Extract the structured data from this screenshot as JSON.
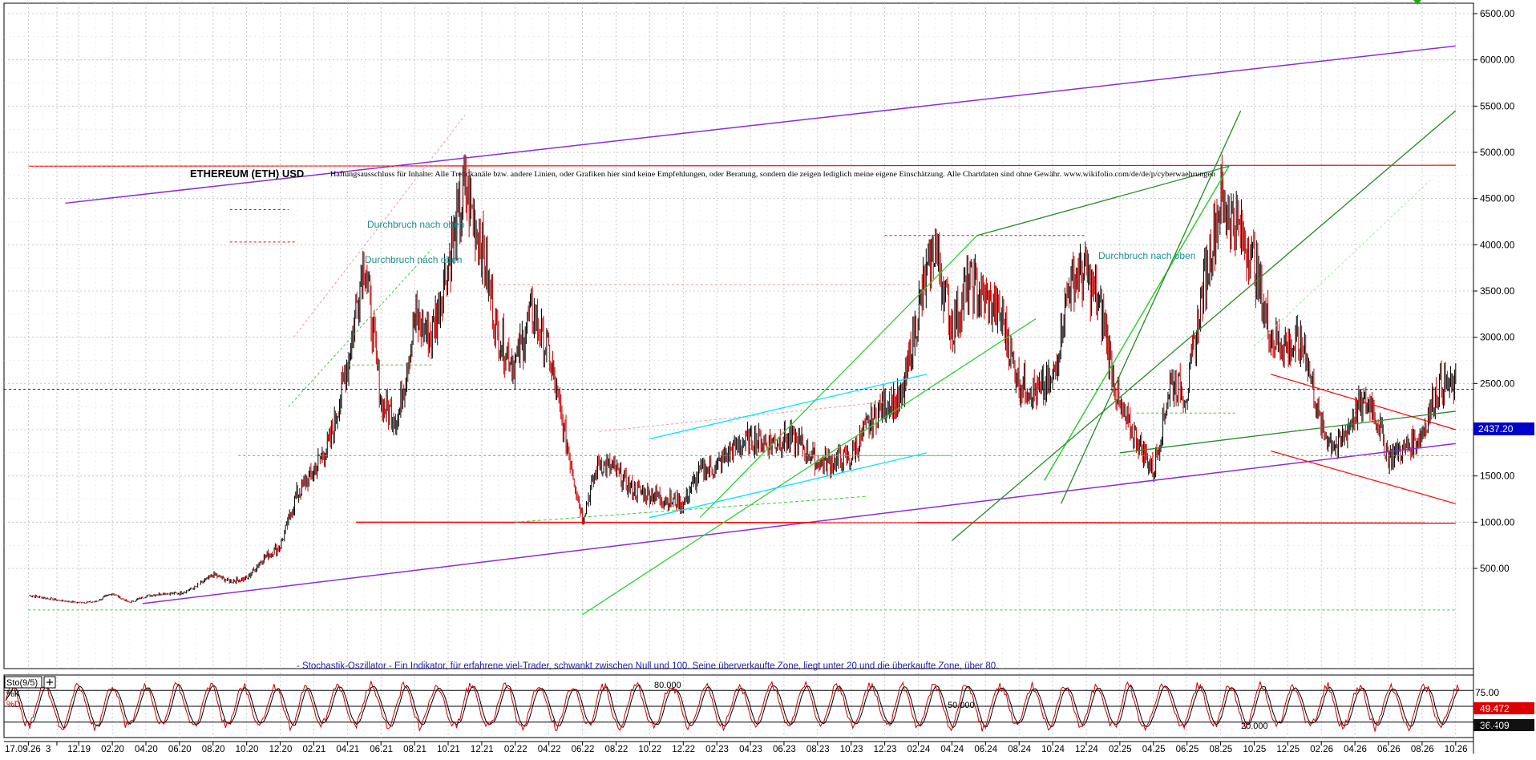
{
  "header": {
    "title": "ETHEREUM (ETH) USD",
    "disclaimer": "Haftungsausschluss für Inhalte: Alle Trendkanäle bzw. andere Linien, oder Grafiken hier sind keine Empfehlungen, oder Beratung, sondern die zeigen lediglich meine eigene Einschätzung. Alle Chartdaten sind ohne Gewähr. www.wikifolio.com/de/de/p/cyberwaehrungen"
  },
  "annotations": [
    {
      "text": "Durchbruch nach oben",
      "x": "2021-03",
      "y": 4550
    },
    {
      "text": "Durchbruch nach oben",
      "x": "2021-03",
      "y": 4180
    },
    {
      "text": "Durchbruch nach oben",
      "x": "2024-11",
      "y": 4130
    }
  ],
  "indicator": {
    "label": "Sto(9/5)",
    "k_label": "%K",
    "d_label": "%D",
    "description": "- Stochastik-Oszillator - Ein Indikator, für erfahrene viel-Trader, schwankt zwischen Null und 100. Seine überverkaufte Zone, liegt unter 20 und die überkaufte Zone, über 80.",
    "levels": [
      80,
      50,
      20
    ],
    "level_labels": [
      "80.000",
      "50.000",
      "20.000"
    ],
    "k_value": "49.472",
    "d_value": "36.409",
    "yticks": [
      "75.00",
      "25.00"
    ],
    "k_color": "#cc0000",
    "d_color": "#000000"
  },
  "colors": {
    "price_up": "#000000",
    "price_down": "#cc0000",
    "channel_purple": "#8a2be2",
    "trend_green": "#33cc33",
    "dark_green": "#228b22",
    "cyan": "#00e5ff",
    "red_line": "#ff0000",
    "current_price_blue": "#0000cc",
    "grid": "#bbbbbb"
  },
  "chart_data": {
    "type": "line",
    "title": "ETHEREUM (ETH) USD",
    "xlabel": "",
    "ylabel": "",
    "scale": "linear",
    "grid": true,
    "ylim": [
      0,
      6650
    ],
    "yticks": [
      500,
      1000,
      1500,
      2000,
      2500,
      3000,
      3500,
      4000,
      4500,
      5000,
      5500,
      6000,
      6500
    ],
    "ytick_labels": [
      "500.00",
      "1000.00",
      "1500.00",
      "2000.00",
      "2500.00",
      "3000.00",
      "3500.00",
      "4000.00",
      "4500.00",
      "5000.00",
      "5500.00",
      "6000.00",
      "6500.00"
    ],
    "current_price": 2437.2,
    "current_price_label": "2437.20",
    "x_tick_labels": [
      "17.09.26",
      "3",
      "12.19",
      "02.20",
      "04.20",
      "06.20",
      "08.20",
      "10.20",
      "12.20",
      "02.21",
      "04.21",
      "06.21",
      "08.21",
      "10.21",
      "12.21",
      "02.22",
      "04.22",
      "06.22",
      "08.22",
      "10.22",
      "12.22",
      "02.23",
      "04.23",
      "06.23",
      "08.23",
      "10.23",
      "12.23",
      "02.24",
      "04.24",
      "06.24",
      "08.24",
      "10.24",
      "12.24",
      "02.25",
      "04.25",
      "06.25",
      "08.25",
      "10.25",
      "12.25",
      "02.26",
      "04.26",
      "06.26",
      "08.26",
      "10.26"
    ],
    "series": [
      {
        "values_x": [
          "2019-09",
          "2019-10",
          "2019-11",
          "2019-12",
          "2020-01",
          "2020-02",
          "2020-03",
          "2020-04",
          "2020-05",
          "2020-06",
          "2020-07",
          "2020-08",
          "2020-09",
          "2020-10",
          "2020-11",
          "2020-12",
          "2021-01",
          "2021-02",
          "2021-03",
          "2021-04",
          "2021-05",
          "2021-06",
          "2021-07",
          "2021-08",
          "2021-09",
          "2021-10",
          "2021-11",
          "2021-12",
          "2022-01",
          "2022-02",
          "2022-03",
          "2022-04",
          "2022-05",
          "2022-06",
          "2022-07",
          "2022-08",
          "2022-09",
          "2022-10",
          "2022-11",
          "2022-12",
          "2023-01",
          "2023-02",
          "2023-03",
          "2023-04",
          "2023-05",
          "2023-06",
          "2023-07",
          "2023-08",
          "2023-09",
          "2023-10",
          "2023-11",
          "2023-12",
          "2024-01",
          "2024-02",
          "2024-03",
          "2024-04",
          "2024-05",
          "2024-06",
          "2024-07",
          "2024-08",
          "2024-09",
          "2024-10",
          "2024-11",
          "2024-12",
          "2025-01",
          "2025-02",
          "2025-03",
          "2025-04",
          "2025-05",
          "2025-06",
          "2025-07",
          "2025-08",
          "2025-09",
          "2025-10",
          "2025-11",
          "2025-12",
          "2026-01",
          "2026-02",
          "2026-03",
          "2026-04",
          "2026-05",
          "2026-06",
          "2026-07",
          "2026-08",
          "2026-09",
          "2026-10"
        ],
        "values_y": [
          210,
          180,
          150,
          130,
          140,
          230,
          130,
          200,
          230,
          230,
          300,
          430,
          360,
          390,
          610,
          740,
          1300,
          1550,
          1900,
          2700,
          3900,
          2300,
          2100,
          3200,
          3000,
          3800,
          4600,
          4000,
          3000,
          2700,
          3300,
          2800,
          1900,
          1050,
          1650,
          1550,
          1350,
          1300,
          1250,
          1200,
          1550,
          1600,
          1800,
          1900,
          1850,
          1900,
          1850,
          1650,
          1650,
          1700,
          2050,
          2300,
          2300,
          3300,
          4000,
          3100,
          3600,
          3400,
          3200,
          2500,
          2400,
          2500,
          3600,
          3700,
          3200,
          2200,
          1900,
          1550,
          2500,
          2400,
          3600,
          4500,
          4200,
          3800,
          3000,
          2900,
          2900,
          2000,
          1800,
          2200,
          2300,
          1700,
          1800,
          1950,
          2500,
          2437
        ]
      }
    ]
  }
}
